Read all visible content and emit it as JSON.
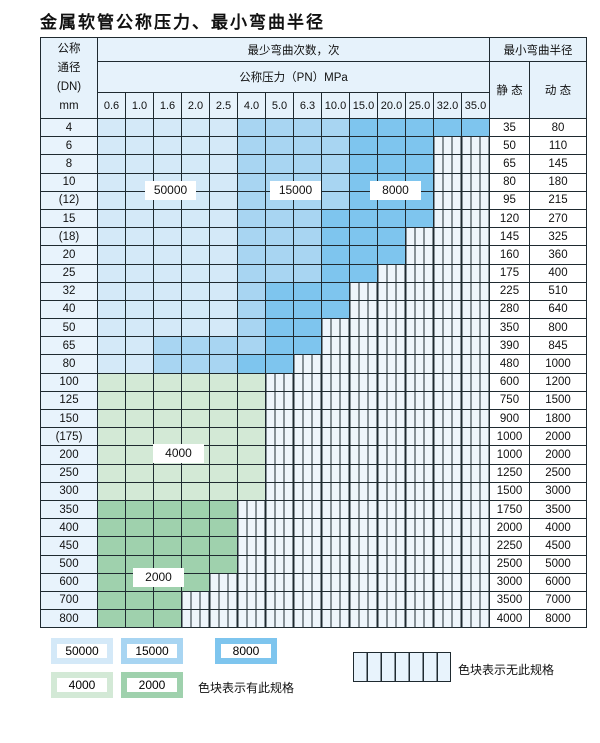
{
  "title": "金属软管公称压力、最小弯曲半径",
  "header": {
    "dn_label": [
      "公称",
      "通径",
      "(DN)",
      "mm"
    ],
    "cycles_label": "最少弯曲次数，次",
    "pressure_label": "公称压力（PN）MPa",
    "radius_label": "最小弯曲半径",
    "static_label": "静 态",
    "dynamic_label": "动 态",
    "pressures": [
      "0.6",
      "1.0",
      "1.6",
      "2.0",
      "2.5",
      "4.0",
      "5.0",
      "6.3",
      "10.0",
      "15.0",
      "20.0",
      "25.0",
      "32.0",
      "35.0"
    ]
  },
  "rows": [
    {
      "dn": "4",
      "cells": "LLLLLMMMMDDDDD",
      "static": "35",
      "dynamic": "80"
    },
    {
      "dn": "6",
      "cells": "LLLLLMMMMDDDee",
      "static": "50",
      "dynamic": "110"
    },
    {
      "dn": "8",
      "cells": "LLLLLMMMMDDDee",
      "static": "65",
      "dynamic": "145"
    },
    {
      "dn": "10",
      "cells": "LLLLLMMMMDDDee",
      "static": "80",
      "dynamic": "180"
    },
    {
      "dn": "(12)",
      "cells": "LLLLLMMMMDDDee",
      "static": "95",
      "dynamic": "215"
    },
    {
      "dn": "15",
      "cells": "LLLLLMMMDDDDee",
      "static": "120",
      "dynamic": "270"
    },
    {
      "dn": "(18)",
      "cells": "LLLLLMMMDDDeee",
      "static": "145",
      "dynamic": "325"
    },
    {
      "dn": "20",
      "cells": "LLLLLMMMDDDeee",
      "static": "160",
      "dynamic": "360"
    },
    {
      "dn": "25",
      "cells": "LLLLLMMMDDeeee",
      "static": "175",
      "dynamic": "400"
    },
    {
      "dn": "32",
      "cells": "LLLLLMDDDeeeee",
      "static": "225",
      "dynamic": "510"
    },
    {
      "dn": "40",
      "cells": "LLLLLMDDDeeeee",
      "static": "280",
      "dynamic": "640"
    },
    {
      "dn": "50",
      "cells": "LLLLLMDDeeeeee",
      "static": "350",
      "dynamic": "800"
    },
    {
      "dn": "65",
      "cells": "LLMMMMDDeeeeee",
      "static": "390",
      "dynamic": "845"
    },
    {
      "dn": "80",
      "cells": "LLMMMDDeeeeeee",
      "static": "480",
      "dynamic": "1000"
    },
    {
      "dn": "100",
      "cells": "ggggggeeeeeeee",
      "static": "600",
      "dynamic": "1200"
    },
    {
      "dn": "125",
      "cells": "ggggggeeeeeeee",
      "static": "750",
      "dynamic": "1500"
    },
    {
      "dn": "150",
      "cells": "ggggggeeeeeeee",
      "static": "900",
      "dynamic": "1800"
    },
    {
      "dn": "(175)",
      "cells": "ggggggeeeeeeee",
      "static": "1000",
      "dynamic": "2000"
    },
    {
      "dn": "200",
      "cells": "ggggggeeeeeeee",
      "static": "1000",
      "dynamic": "2000"
    },
    {
      "dn": "250",
      "cells": "ggggggeeeeeeee",
      "static": "1250",
      "dynamic": "2500"
    },
    {
      "dn": "300",
      "cells": "ggggggeeeeeeee",
      "static": "1500",
      "dynamic": "3000"
    },
    {
      "dn": "350",
      "cells": "GGGGGeeeeeeeee",
      "static": "1750",
      "dynamic": "3500"
    },
    {
      "dn": "400",
      "cells": "GGGGGeeeeeeeee",
      "static": "2000",
      "dynamic": "4000"
    },
    {
      "dn": "450",
      "cells": "GGGGGeeeeeeeee",
      "static": "2250",
      "dynamic": "4500"
    },
    {
      "dn": "500",
      "cells": "GGGGGeeeeeeeee",
      "static": "2500",
      "dynamic": "5000"
    },
    {
      "dn": "600",
      "cells": "GGGGeeeeeeeeee",
      "static": "3000",
      "dynamic": "6000"
    },
    {
      "dn": "700",
      "cells": "GGGeeeeeeeeeee",
      "static": "3500",
      "dynamic": "7000"
    },
    {
      "dn": "800",
      "cells": "GGGeeeeeeeeeee",
      "static": "4000",
      "dynamic": "8000"
    }
  ],
  "region_labels": {
    "r50000": "50000",
    "r15000": "15000",
    "r8000": "8000",
    "r4000": "4000",
    "r2000": "2000"
  },
  "legend": {
    "items": [
      "50000",
      "15000",
      "8000",
      "4000",
      "2000"
    ],
    "has_spec": "色块表示有此规格",
    "no_spec": "色块表示无此规格"
  },
  "colors": {
    "L": "#d4e9f8",
    "M": "#a8d5f2",
    "D": "#7ec5ee",
    "g": "#d3e9d6",
    "G": "#9fd1ad",
    "empty": "#eef5fb"
  }
}
